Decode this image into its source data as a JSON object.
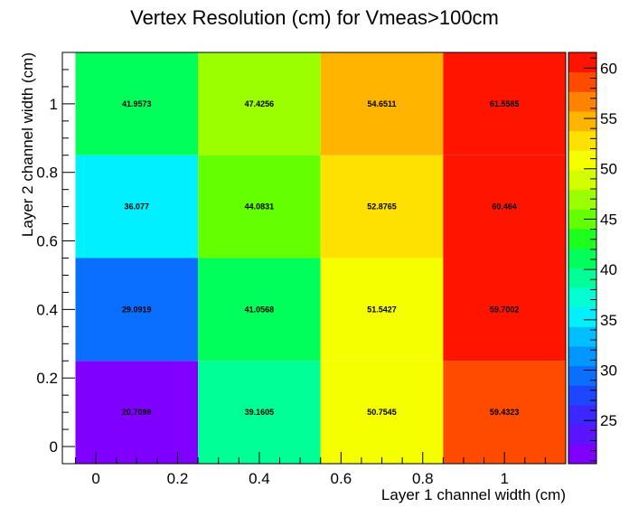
{
  "chart_data": {
    "type": "heatmap",
    "title": "Vertex Resolution (cm) for Vmeas>100cm",
    "xlabel": "Layer 1 channel width (cm)",
    "ylabel": "Layer 2 channel width (cm)",
    "xlim": [
      -0.082,
      1.15
    ],
    "ylim": [
      -0.05,
      1.15
    ],
    "x_edges": [
      -0.05,
      0.25,
      0.55,
      0.85,
      1.15
    ],
    "y_edges": [
      -0.05,
      0.25,
      0.55,
      0.85,
      1.15
    ],
    "x_ticks": [
      0,
      0.2,
      0.4,
      0.6,
      0.8,
      1
    ],
    "x_tick_labels": [
      "0",
      "0.2",
      "0.4",
      "0.6",
      "0.8",
      "1"
    ],
    "y_ticks": [
      0,
      0.2,
      0.4,
      0.6,
      0.8,
      1
    ],
    "y_tick_labels": [
      "0",
      "0.2",
      "0.4",
      "0.6",
      "0.8",
      "1"
    ],
    "z_range": [
      20.7099,
      61.5585
    ],
    "z_ticks": [
      25,
      30,
      35,
      40,
      45,
      50,
      55,
      60
    ],
    "z_tick_labels": [
      "25",
      "30",
      "35",
      "40",
      "45",
      "50",
      "55",
      "60"
    ],
    "cells": [
      {
        "x": 0.1,
        "y": 0.1,
        "value": 20.7099,
        "label": "20.7099"
      },
      {
        "x": 0.4,
        "y": 0.1,
        "value": 39.1605,
        "label": "39.1605"
      },
      {
        "x": 0.7,
        "y": 0.1,
        "value": 50.7545,
        "label": "50.7545"
      },
      {
        "x": 1.0,
        "y": 0.1,
        "value": 59.4323,
        "label": "59.4323"
      },
      {
        "x": 0.1,
        "y": 0.4,
        "value": 29.0919,
        "label": "29.0919"
      },
      {
        "x": 0.4,
        "y": 0.4,
        "value": 41.0568,
        "label": "41.0568"
      },
      {
        "x": 0.7,
        "y": 0.4,
        "value": 51.5427,
        "label": "51.5427"
      },
      {
        "x": 1.0,
        "y": 0.4,
        "value": 59.7002,
        "label": "59.7002"
      },
      {
        "x": 0.1,
        "y": 0.7,
        "value": 36.077,
        "label": "36.077"
      },
      {
        "x": 0.4,
        "y": 0.7,
        "value": 44.0831,
        "label": "44.0831"
      },
      {
        "x": 0.7,
        "y": 0.7,
        "value": 52.8765,
        "label": "52.8765"
      },
      {
        "x": 1.0,
        "y": 0.7,
        "value": 60.464,
        "label": "60.464"
      },
      {
        "x": 0.1,
        "y": 1.0,
        "value": 41.9573,
        "label": "41.9573"
      },
      {
        "x": 0.4,
        "y": 1.0,
        "value": 47.4256,
        "label": "47.4256"
      },
      {
        "x": 0.7,
        "y": 1.0,
        "value": 54.6511,
        "label": "54.6511"
      },
      {
        "x": 1.0,
        "y": 1.0,
        "value": 61.5585,
        "label": "61.5585"
      }
    ],
    "palette": [
      "#8000ff",
      "#5a14ff",
      "#3c28ff",
      "#1e46ff",
      "#0a6eff",
      "#0096ff",
      "#00beff",
      "#00f0ff",
      "#00ffd2",
      "#00ff96",
      "#00ff5a",
      "#1eff1e",
      "#64ff00",
      "#9bff00",
      "#d2ff00",
      "#f5ff00",
      "#ffe100",
      "#ffb400",
      "#ff8200",
      "#ff4b00",
      "#ff1400"
    ],
    "grid": false,
    "legend": "right colorbar"
  }
}
